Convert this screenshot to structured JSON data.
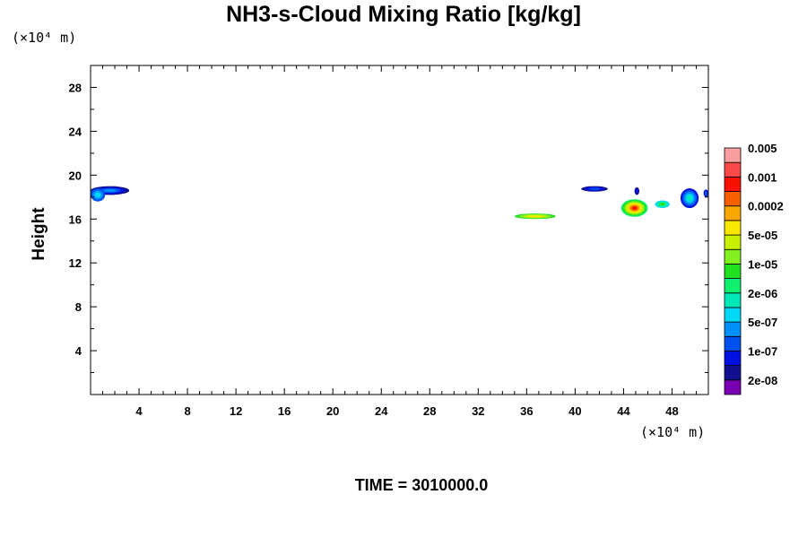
{
  "chart_data": {
    "type": "heatmap",
    "title": "NH3-s-Cloud Mixing Ratio [kg/kg]",
    "ylabel": "Height",
    "y_unit": "(×10⁴ m)",
    "x_unit": "(×10⁴ m)",
    "time_label": "TIME = 3010000.0",
    "xlim": [
      0,
      51
    ],
    "ylim": [
      0,
      30
    ],
    "x_ticks": [
      4,
      8,
      12,
      16,
      20,
      24,
      28,
      32,
      36,
      40,
      44,
      48
    ],
    "y_ticks": [
      4,
      8,
      12,
      16,
      20,
      24,
      28
    ],
    "colorbar": {
      "colors": [
        "#7a00b4",
        "#101090",
        "#0010e0",
        "#0050f0",
        "#0090f8",
        "#00d8f8",
        "#00e8b8",
        "#10f070",
        "#20e020",
        "#80f020",
        "#c8f000",
        "#f8e800",
        "#f8a800",
        "#f86000",
        "#f81000",
        "#f84848",
        "#f8a0a0"
      ],
      "labels": [
        "2e-08",
        "1e-07",
        "5e-07",
        "2e-06",
        "1e-05",
        "5e-05",
        "0.0002",
        "0.001",
        "0.005"
      ]
    },
    "features": [
      {
        "x0": 0.0,
        "x1": 3.2,
        "ymin": 18.2,
        "ymax": 19.0,
        "levels": [
          1,
          2,
          3,
          4
        ]
      },
      {
        "x0": 0.0,
        "x1": 1.2,
        "ymin": 17.6,
        "ymax": 18.8,
        "levels": [
          3,
          4,
          5
        ]
      },
      {
        "x0": 35.0,
        "x1": 38.4,
        "ymin": 16.0,
        "ymax": 16.5,
        "levels": [
          8,
          9,
          10,
          11
        ]
      },
      {
        "x0": 40.5,
        "x1": 42.7,
        "ymin": 18.5,
        "ymax": 19.0,
        "levels": [
          1,
          2,
          3
        ]
      },
      {
        "x0": 43.8,
        "x1": 46.0,
        "ymin": 16.2,
        "ymax": 17.8,
        "levels": [
          7,
          8,
          9,
          10,
          11,
          12,
          13,
          14
        ]
      },
      {
        "x0": 44.9,
        "x1": 45.3,
        "ymin": 18.2,
        "ymax": 18.9,
        "levels": [
          1,
          2
        ]
      },
      {
        "x0": 46.6,
        "x1": 47.8,
        "ymin": 17.0,
        "ymax": 17.7,
        "levels": [
          5,
          6,
          7,
          8
        ]
      },
      {
        "x0": 48.7,
        "x1": 50.2,
        "ymin": 17.0,
        "ymax": 18.8,
        "levels": [
          2,
          3,
          4,
          5,
          6
        ]
      },
      {
        "x0": 50.6,
        "x1": 51.0,
        "ymin": 18.0,
        "ymax": 18.7,
        "levels": [
          2,
          3
        ]
      }
    ]
  }
}
